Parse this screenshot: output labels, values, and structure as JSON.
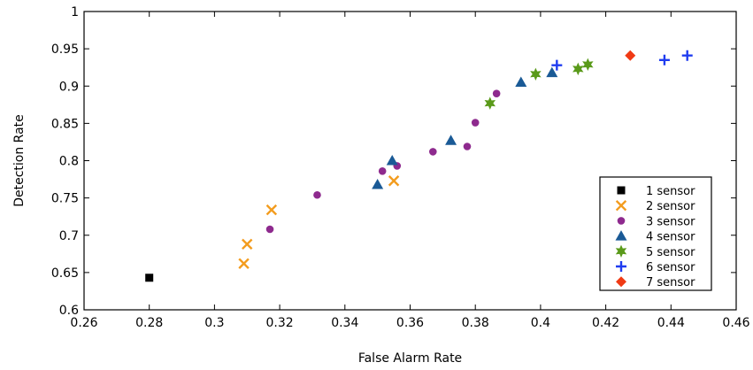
{
  "chart_data": {
    "type": "scatter",
    "title": "",
    "xlabel": "False Alarm Rate",
    "ylabel": "Detection Rate",
    "xlim": [
      0.26,
      0.46
    ],
    "ylim": [
      0.6,
      1.0
    ],
    "xticks": [
      "0.26",
      "0.28",
      "0.3",
      "0.32",
      "0.34",
      "0.36",
      "0.38",
      "0.4",
      "0.42",
      "0.44",
      "0.46"
    ],
    "yticks": [
      "0.6",
      "0.65",
      "0.7",
      "0.75",
      "0.8",
      "0.85",
      "0.9",
      "0.95",
      "1"
    ],
    "grid": false,
    "legend_position": "bottom-right",
    "series": [
      {
        "name": "1 sensor",
        "marker": "square",
        "color": "#000000",
        "points": [
          [
            0.28,
            0.643
          ]
        ]
      },
      {
        "name": "2 sensor",
        "marker": "x",
        "color": "#f39c1e",
        "points": [
          [
            0.309,
            0.662
          ],
          [
            0.31,
            0.688
          ],
          [
            0.3175,
            0.734
          ],
          [
            0.355,
            0.773
          ]
        ]
      },
      {
        "name": "3 sensor",
        "marker": "circle",
        "color": "#8e2a8e",
        "points": [
          [
            0.317,
            0.708
          ],
          [
            0.3315,
            0.754
          ],
          [
            0.3515,
            0.786
          ],
          [
            0.356,
            0.793
          ],
          [
            0.367,
            0.812
          ],
          [
            0.3775,
            0.819
          ],
          [
            0.38,
            0.851
          ],
          [
            0.3865,
            0.89
          ]
        ]
      },
      {
        "name": "4 sensor",
        "marker": "triangle",
        "color": "#1a5a96",
        "points": [
          [
            0.35,
            0.768
          ],
          [
            0.3545,
            0.8
          ],
          [
            0.3725,
            0.827
          ],
          [
            0.394,
            0.905
          ],
          [
            0.4035,
            0.918
          ]
        ]
      },
      {
        "name": "5 sensor",
        "marker": "star",
        "color": "#5a9a1a",
        "points": [
          [
            0.3845,
            0.877
          ],
          [
            0.3985,
            0.916
          ],
          [
            0.4115,
            0.923
          ],
          [
            0.4145,
            0.929
          ]
        ]
      },
      {
        "name": "6 sensor",
        "marker": "plus",
        "color": "#1f3cf0",
        "points": [
          [
            0.405,
            0.928
          ],
          [
            0.438,
            0.935
          ],
          [
            0.445,
            0.941
          ]
        ]
      },
      {
        "name": "7 sensor",
        "marker": "diamond",
        "color": "#f03a14",
        "points": [
          [
            0.4275,
            0.941
          ]
        ]
      }
    ]
  }
}
